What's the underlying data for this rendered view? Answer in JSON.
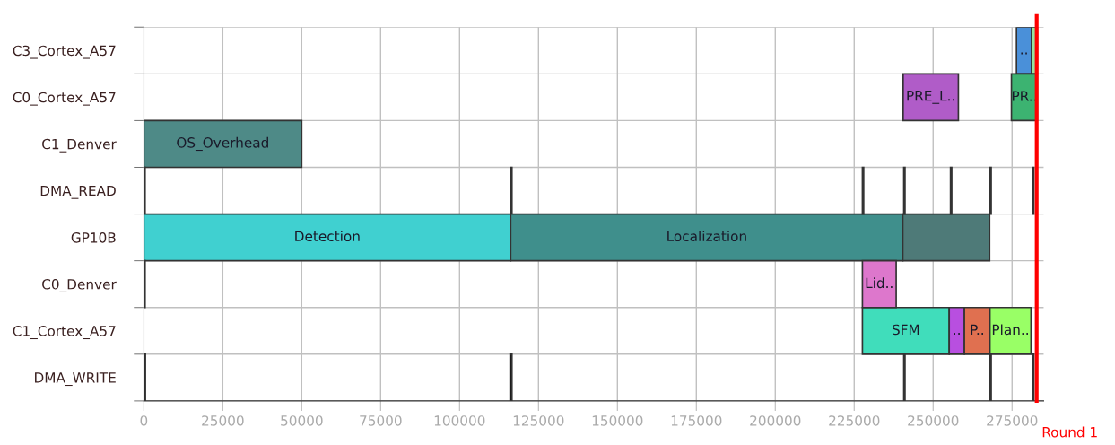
{
  "chart_data": {
    "type": "bar",
    "orientation": "horizontal",
    "categories": [
      "C3_Cortex_A57",
      "C0_Cortex_A57",
      "C1_Denver",
      "DMA_READ",
      "GP10B",
      "C0_Denver",
      "C1_Cortex_A57",
      "DMA_WRITE"
    ],
    "series": [
      {
        "values": [
          4800,
          17500,
          50000,
          400,
          116200,
          400,
          27500,
          500
        ],
        "base": [
          276400,
          240500,
          0,
          0,
          0,
          0,
          227600,
          0
        ],
        "colors": [
          "#4a90d9",
          "#b05cc8",
          "#4e8a87",
          "#000000",
          "#40d0d0",
          "#000000",
          "#40ddbb",
          "#000000"
        ],
        "value_labels": [
          "..",
          "PRE_L..",
          "OS_Overhead",
          null,
          "Detection",
          null,
          "SFM",
          null
        ]
      },
      {
        "values": [
          1800,
          8200,
          null,
          400,
          124200,
          10700,
          4800,
          600
        ],
        "base": [
          281200,
          274800,
          null,
          116200,
          116200,
          227600,
          255100,
          116000
        ],
        "colors": [
          "#98e6a0",
          "#3cb371",
          null,
          "#000000",
          "#3f8f8c",
          "#dd77cc",
          "#b84fe0",
          "#000000"
        ],
        "value_labels": [
          null,
          "PR..",
          null,
          null,
          "Localization",
          "Lid..",
          "..",
          null
        ]
      },
      {
        "values": [
          null,
          null,
          null,
          400,
          27500,
          null,
          8100,
          400
        ],
        "base": [
          null,
          null,
          null,
          227600,
          240400,
          null,
          259900,
          240700
        ],
        "colors": [
          null,
          null,
          null,
          "#000000",
          "#4e7a78",
          null,
          "#e07050",
          "#000000"
        ],
        "value_labels": [
          null,
          null,
          null,
          null,
          null,
          null,
          "P..",
          null
        ]
      },
      {
        "values": [
          null,
          null,
          null,
          400,
          null,
          null,
          13000,
          400
        ],
        "base": [
          null,
          null,
          null,
          240700,
          null,
          null,
          268000,
          268000
        ],
        "colors": [
          null,
          null,
          null,
          "#000000",
          null,
          null,
          "#99ff66",
          "#000000"
        ],
        "value_labels": [
          null,
          null,
          null,
          null,
          null,
          null,
          "Plan..",
          null
        ]
      },
      {
        "values": [
          null,
          null,
          null,
          400,
          null,
          null,
          null,
          400
        ],
        "base": [
          null,
          null,
          null,
          255500,
          null,
          null,
          null,
          281500
        ],
        "colors": [
          null,
          null,
          null,
          "#000000",
          null,
          null,
          null,
          "#000000"
        ]
      },
      {
        "values": [
          null,
          null,
          null,
          400,
          null,
          null,
          null,
          null
        ],
        "base": [
          null,
          null,
          null,
          268000,
          null,
          null,
          null,
          null
        ],
        "colors": [
          null,
          null,
          null,
          "#000000",
          null,
          null,
          null,
          null
        ]
      },
      {
        "values": [
          null,
          null,
          null,
          400,
          null,
          null,
          null,
          null
        ],
        "base": [
          null,
          null,
          null,
          281500,
          null,
          null,
          null,
          null
        ],
        "colors": [
          null,
          null,
          null,
          "#000000",
          null,
          null,
          null,
          null
        ]
      }
    ],
    "xlim": [
      0,
      285000
    ],
    "xticks": [
      0,
      25000,
      50000,
      75000,
      100000,
      125000,
      150000,
      175000,
      200000,
      225000,
      250000,
      275000
    ],
    "grid": true,
    "ref_lines": [
      {
        "axis": "x",
        "value": 282800,
        "label": "Round 1",
        "color": "#ff0000"
      }
    ]
  }
}
